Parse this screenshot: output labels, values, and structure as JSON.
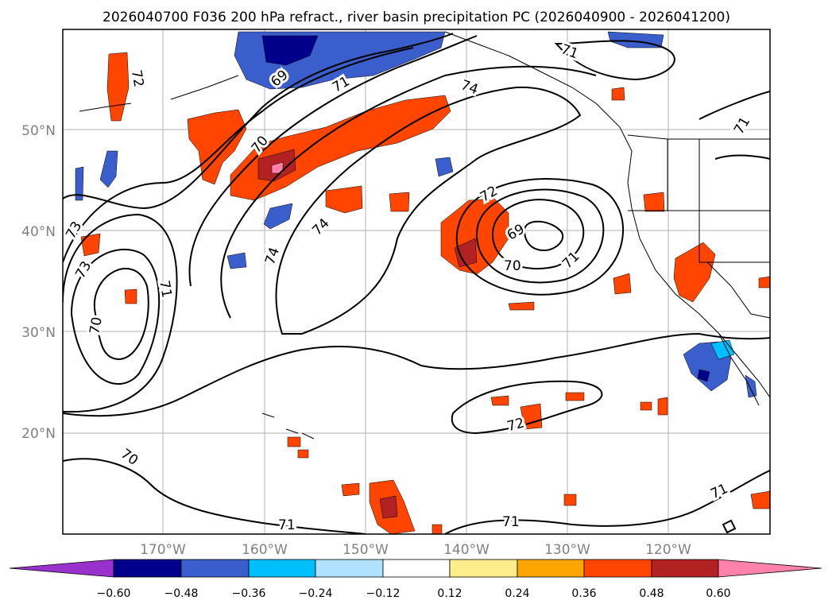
{
  "title": "2026040700 F036 200 hPa refract., river basin precipitation PC (2026040900 - 2026041200)",
  "axes": {
    "lat_labels": [
      "20°N",
      "30°N",
      "40°N",
      "50°N"
    ],
    "lon_labels": [
      "170°W",
      "160°W",
      "150°W",
      "140°W",
      "130°W",
      "120°W"
    ],
    "tick_color": "#808080"
  },
  "contour_labels": [
    "72",
    "69",
    "71",
    "74",
    "71",
    "71",
    "70",
    "73",
    "73",
    "70",
    "71",
    "74",
    "74",
    "72",
    "69",
    "70",
    "71",
    "72",
    "70",
    "71",
    "71",
    "71"
  ],
  "colorbar": {
    "ticks": [
      "−0.60",
      "−0.48",
      "−0.36",
      "−0.24",
      "−0.12",
      "0.12",
      "0.24",
      "0.36",
      "0.48",
      "0.60"
    ],
    "colors": [
      "#9932cc",
      "#00008b",
      "#3a5fcd",
      "#00bfff",
      "#b0e2ff",
      "#ffffff",
      "#ffec8b",
      "#ffa500",
      "#ff4500",
      "#b22222",
      "#ff82ab"
    ]
  }
}
